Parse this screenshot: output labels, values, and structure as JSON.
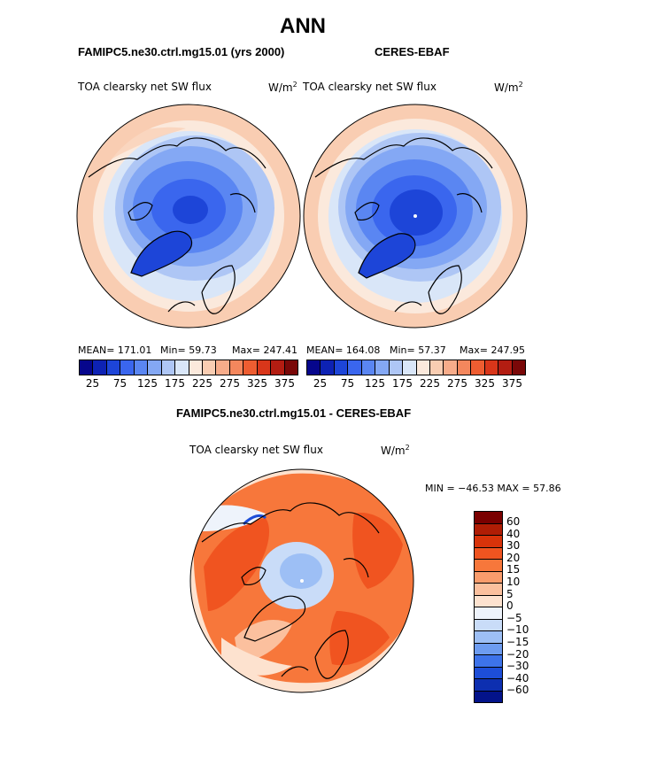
{
  "title": "ANN",
  "left_panel": {
    "case": "FAMIPC5.ne30.ctrl.mg15.01 (yrs 2000)",
    "field": "TOA clearsky net SW flux",
    "units": "W/m",
    "units_sup": "2",
    "stats": {
      "mean": "MEAN= 171.01",
      "min": "Min=  59.73",
      "max": "Max= 247.41"
    }
  },
  "right_panel": {
    "case": "CERES-EBAF",
    "field": "TOA clearsky net SW flux",
    "units": "W/m",
    "units_sup": "2",
    "stats": {
      "mean": "MEAN= 164.08",
      "min": "Min=  57.37",
      "max": "Max= 247.95"
    }
  },
  "abs_colorbar": {
    "colors": [
      "#06068c",
      "#0d22b4",
      "#1d45d8",
      "#3a66ee",
      "#5a86f2",
      "#84a8f4",
      "#aec6f5",
      "#d9e6f8",
      "#fbe9dc",
      "#f9cdb2",
      "#f7ac8a",
      "#f4875d",
      "#ee5d31",
      "#d9361a",
      "#b31d12",
      "#7a0808"
    ],
    "ticks": [
      "25",
      "75",
      "125",
      "175",
      "225",
      "275",
      "325",
      "375"
    ]
  },
  "diff_panel": {
    "title": "FAMIPC5.ne30.ctrl.mg15.01 - CERES-EBAF",
    "field": "TOA clearsky net SW flux",
    "units": "W/m",
    "units_sup": "2",
    "minmax": "MIN = −46.53 MAX =   57.86"
  },
  "diff_colorbar": {
    "colors": [
      "#7a0000",
      "#b01d05",
      "#d8330a",
      "#f05420",
      "#f7773b",
      "#f99c6c",
      "#fbc09e",
      "#fde2cf",
      "#eef3fb",
      "#c9dcf8",
      "#9dbff5",
      "#6d9cf0",
      "#3d73ea",
      "#1d4ed8",
      "#0d2fb0",
      "#03138a"
    ],
    "labels": [
      "60",
      "40",
      "30",
      "20",
      "15",
      "10",
      "5",
      "0",
      "−5",
      "−10",
      "−15",
      "−20",
      "−30",
      "−40",
      "−60"
    ]
  }
}
